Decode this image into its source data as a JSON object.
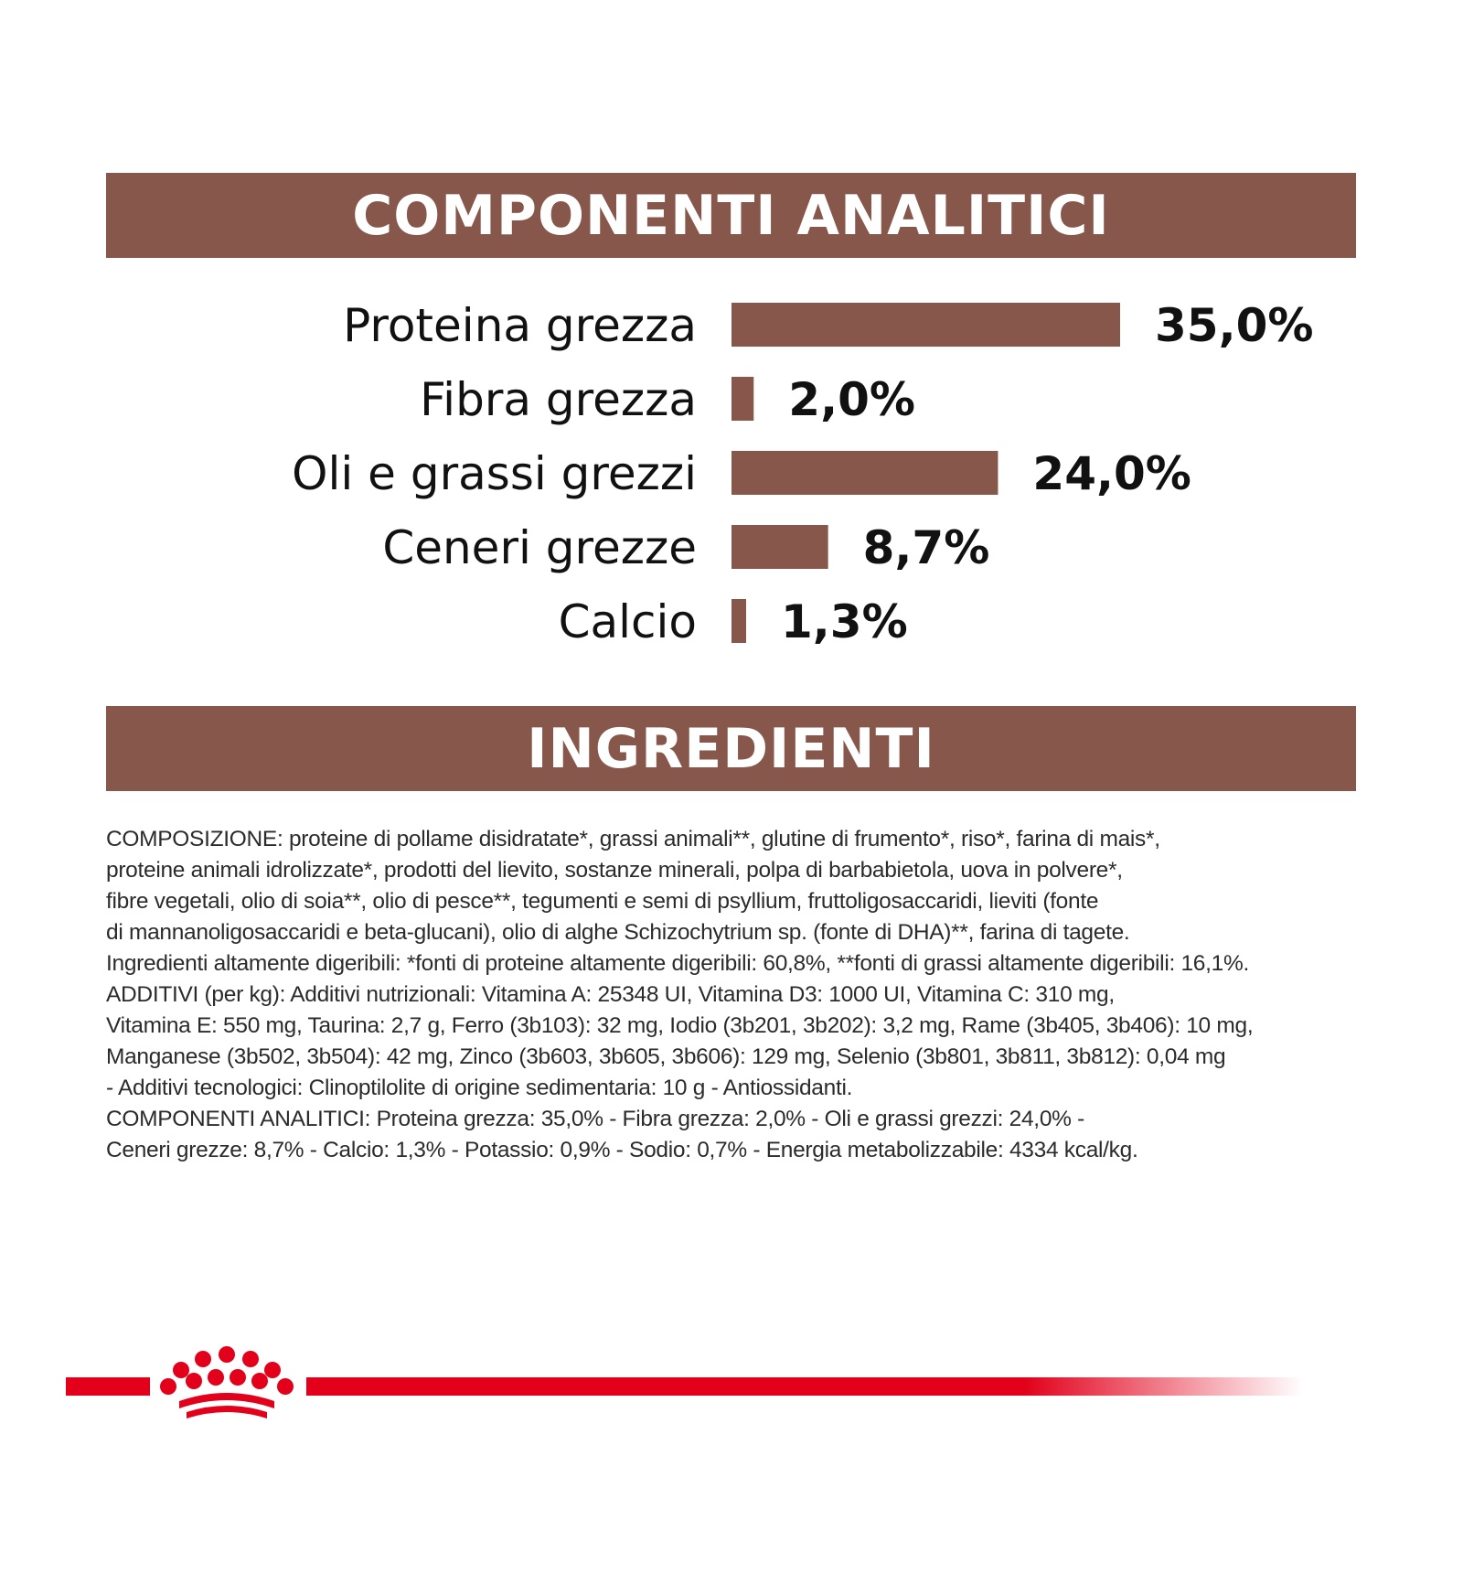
{
  "analytics_banner": {
    "title": "COMPONENTI ANALITICI"
  },
  "ingredients_banner": {
    "title": "INGREDIENTI"
  },
  "chart_data": {
    "type": "bar",
    "orientation": "horizontal",
    "categories": [
      "Proteina grezza",
      "Fibra grezza",
      "Oli e grassi grezzi",
      "Ceneri grezze",
      "Calcio"
    ],
    "values": [
      35.0,
      2.0,
      24.0,
      8.7,
      1.3
    ],
    "value_labels": [
      "35,0%",
      "2,0%",
      "24,0%",
      "8,7%",
      "1,3%"
    ],
    "unit": "%",
    "bar_color": "#86574a",
    "xlim": [
      0,
      35
    ],
    "grid": false,
    "legend": "none"
  },
  "ingredients": {
    "lines": [
      "COMPOSIZIONE: proteine di pollame disidratate*, grassi animali**, glutine di frumento*, riso*, farina di mais*,",
      "proteine animali idrolizzate*, prodotti del lievito, sostanze minerali, polpa di barbabietola, uova in polvere*,",
      "fibre vegetali, olio di soia**, olio di pesce**, tegumenti e semi di psyllium, fruttoligosaccaridi, lieviti (fonte",
      "di mannanoligosaccaridi e beta-glucani), olio di alghe Schizochytrium sp. (fonte di DHA)**, farina di tagete.",
      "Ingredienti altamente digeribili: *fonti di proteine altamente digeribili: 60,8%, **fonti di grassi altamente digeribili: 16,1%.",
      "ADDITIVI (per kg): Additivi nutrizionali: Vitamina A: 25348 UI, Vitamina D3: 1000 UI, Vitamina C: 310 mg,",
      "Vitamina E: 550 mg, Taurina: 2,7 g, Ferro (3b103): 32 mg, Iodio (3b201, 3b202): 3,2 mg, Rame (3b405, 3b406): 10 mg,",
      "Manganese (3b502, 3b504): 42 mg, Zinco (3b603, 3b605, 3b606): 129 mg, Selenio (3b801, 3b811, 3b812): 0,04 mg",
      "- Additivi tecnologici: Clinoptilolite di origine sedimentaria: 10 g - Antiossidanti.",
      "COMPONENTI ANALITICI: Proteina grezza: 35,0% - Fibra grezza: 2,0% - Oli e grassi grezzi: 24,0% -",
      "Ceneri grezze: 8,7% - Calcio: 1,3% - Potassio: 0,9% - Sodio: 0,7% - Energia metabolizzabile: 4334 kcal/kg."
    ]
  },
  "brand": {
    "logo_icon": "crown-logo-icon",
    "accent_color": "#e2001a"
  }
}
